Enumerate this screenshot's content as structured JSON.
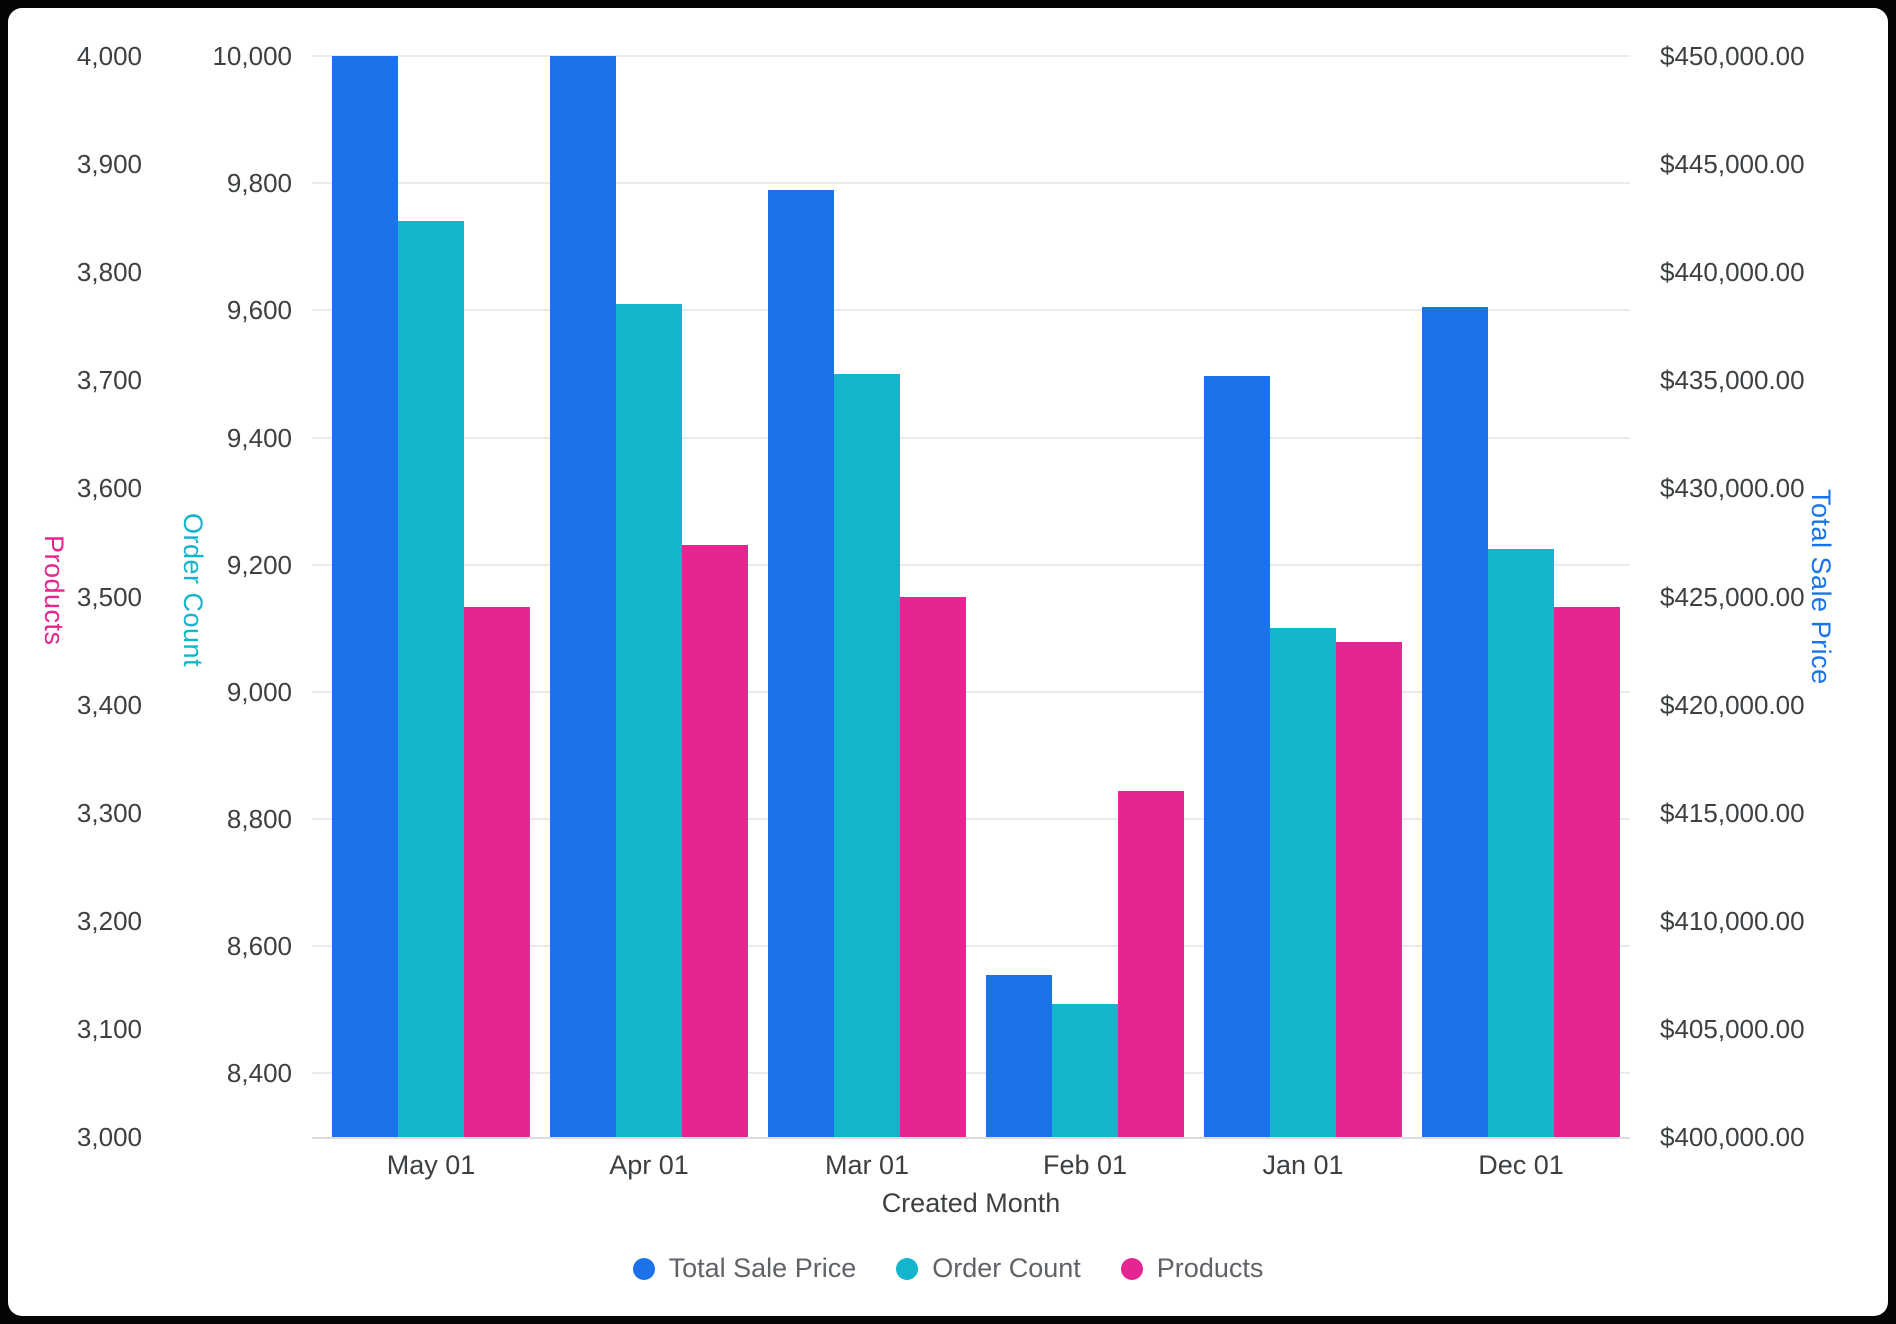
{
  "frame": {
    "background": "#050505",
    "card_background": "#ffffff"
  },
  "chart_data": {
    "type": "bar",
    "title": "",
    "xlabel": "Created Month",
    "categories": [
      "May 01",
      "Apr 01",
      "Mar 01",
      "Feb 01",
      "Jan 01",
      "Dec 01"
    ],
    "series": [
      {
        "name": "Total Sale Price",
        "axis": "price",
        "color": "#1A73E8",
        "values": [
          450000,
          450000,
          443800,
          407500,
          435200,
          438400
        ]
      },
      {
        "name": "Order Count",
        "axis": "order_count",
        "color": "#12B5CB",
        "values": [
          9740,
          9610,
          9500,
          8510,
          9100,
          9225
        ]
      },
      {
        "name": "Products",
        "axis": "products",
        "color": "#E52592",
        "values": [
          3490,
          3548,
          3500,
          3320,
          3458,
          3490
        ]
      }
    ],
    "axes": {
      "products": {
        "title": "Products",
        "color": "#E52592",
        "side": "left-outer",
        "min": 3000,
        "max": 4000,
        "ticks": [
          {
            "value": 4000,
            "label": "4,000"
          },
          {
            "value": 3900,
            "label": "3,900"
          },
          {
            "value": 3800,
            "label": "3,800"
          },
          {
            "value": 3700,
            "label": "3,700"
          },
          {
            "value": 3600,
            "label": "3,600"
          },
          {
            "value": 3500,
            "label": "3,500"
          },
          {
            "value": 3400,
            "label": "3,400"
          },
          {
            "value": 3300,
            "label": "3,300"
          },
          {
            "value": 3200,
            "label": "3,200"
          },
          {
            "value": 3100,
            "label": "3,100"
          },
          {
            "value": 3000,
            "label": "3,000"
          }
        ]
      },
      "order_count": {
        "title": "Order Count",
        "color": "#12B5CB",
        "side": "left-inner",
        "min": 8300,
        "max": 10000,
        "ticks": [
          {
            "value": 10000,
            "label": "10,000"
          },
          {
            "value": 9800,
            "label": "9,800"
          },
          {
            "value": 9600,
            "label": "9,600"
          },
          {
            "value": 9400,
            "label": "9,400"
          },
          {
            "value": 9200,
            "label": "9,200"
          },
          {
            "value": 9000,
            "label": "9,000"
          },
          {
            "value": 8800,
            "label": "8,800"
          },
          {
            "value": 8600,
            "label": "8,600"
          },
          {
            "value": 8400,
            "label": "8,400"
          }
        ]
      },
      "price": {
        "title": "Total Sale Price",
        "color": "#1A73E8",
        "side": "right",
        "min": 400000,
        "max": 450000,
        "ticks": [
          {
            "value": 450000,
            "label": "$450,000.00"
          },
          {
            "value": 445000,
            "label": "$445,000.00"
          },
          {
            "value": 440000,
            "label": "$440,000.00"
          },
          {
            "value": 435000,
            "label": "$435,000.00"
          },
          {
            "value": 430000,
            "label": "$430,000.00"
          },
          {
            "value": 425000,
            "label": "$425,000.00"
          },
          {
            "value": 420000,
            "label": "$420,000.00"
          },
          {
            "value": 415000,
            "label": "$415,000.00"
          },
          {
            "value": 410000,
            "label": "$410,000.00"
          },
          {
            "value": 405000,
            "label": "$405,000.00"
          },
          {
            "value": 400000,
            "label": "$400,000.00"
          }
        ]
      }
    },
    "grid": {
      "lines_follow_axis": "order_count",
      "color": "#e8eaed"
    },
    "legend_position": "bottom"
  },
  "legend": {
    "items": [
      {
        "label": "Total Sale Price",
        "color": "#1A73E8"
      },
      {
        "label": "Order Count",
        "color": "#12B5CB"
      },
      {
        "label": "Products",
        "color": "#E52592"
      }
    ]
  }
}
